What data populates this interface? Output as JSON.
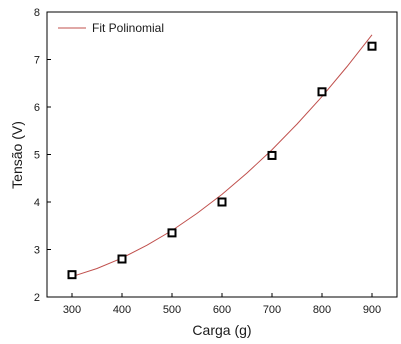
{
  "chart_data": {
    "type": "scatter",
    "xlabel": "Carga (g)",
    "ylabel": "Tensão (V)",
    "xlim": [
      250,
      950
    ],
    "ylim": [
      2,
      8
    ],
    "x_ticks": [
      "300",
      "400",
      "500",
      "600",
      "700",
      "800",
      "900"
    ],
    "y_ticks": [
      "2",
      "3",
      "4",
      "5",
      "6",
      "7",
      "8"
    ],
    "grid": false,
    "legend_position": "top-left",
    "series": [
      {
        "kind": "points",
        "marker": "open-square",
        "color": "#000000",
        "x": [
          300,
          400,
          500,
          600,
          700,
          800,
          900
        ],
        "y": [
          2.47,
          2.8,
          3.35,
          4.0,
          4.98,
          6.32,
          7.28
        ]
      },
      {
        "name": "Fit Polinomial",
        "kind": "line",
        "color": "#c0504d",
        "x": [
          300,
          350,
          400,
          450,
          500,
          550,
          600,
          650,
          700,
          750,
          800,
          850,
          900
        ],
        "y": [
          2.43,
          2.6,
          2.82,
          3.09,
          3.4,
          3.76,
          4.16,
          4.61,
          5.1,
          5.64,
          6.22,
          6.85,
          7.52
        ]
      }
    ]
  }
}
